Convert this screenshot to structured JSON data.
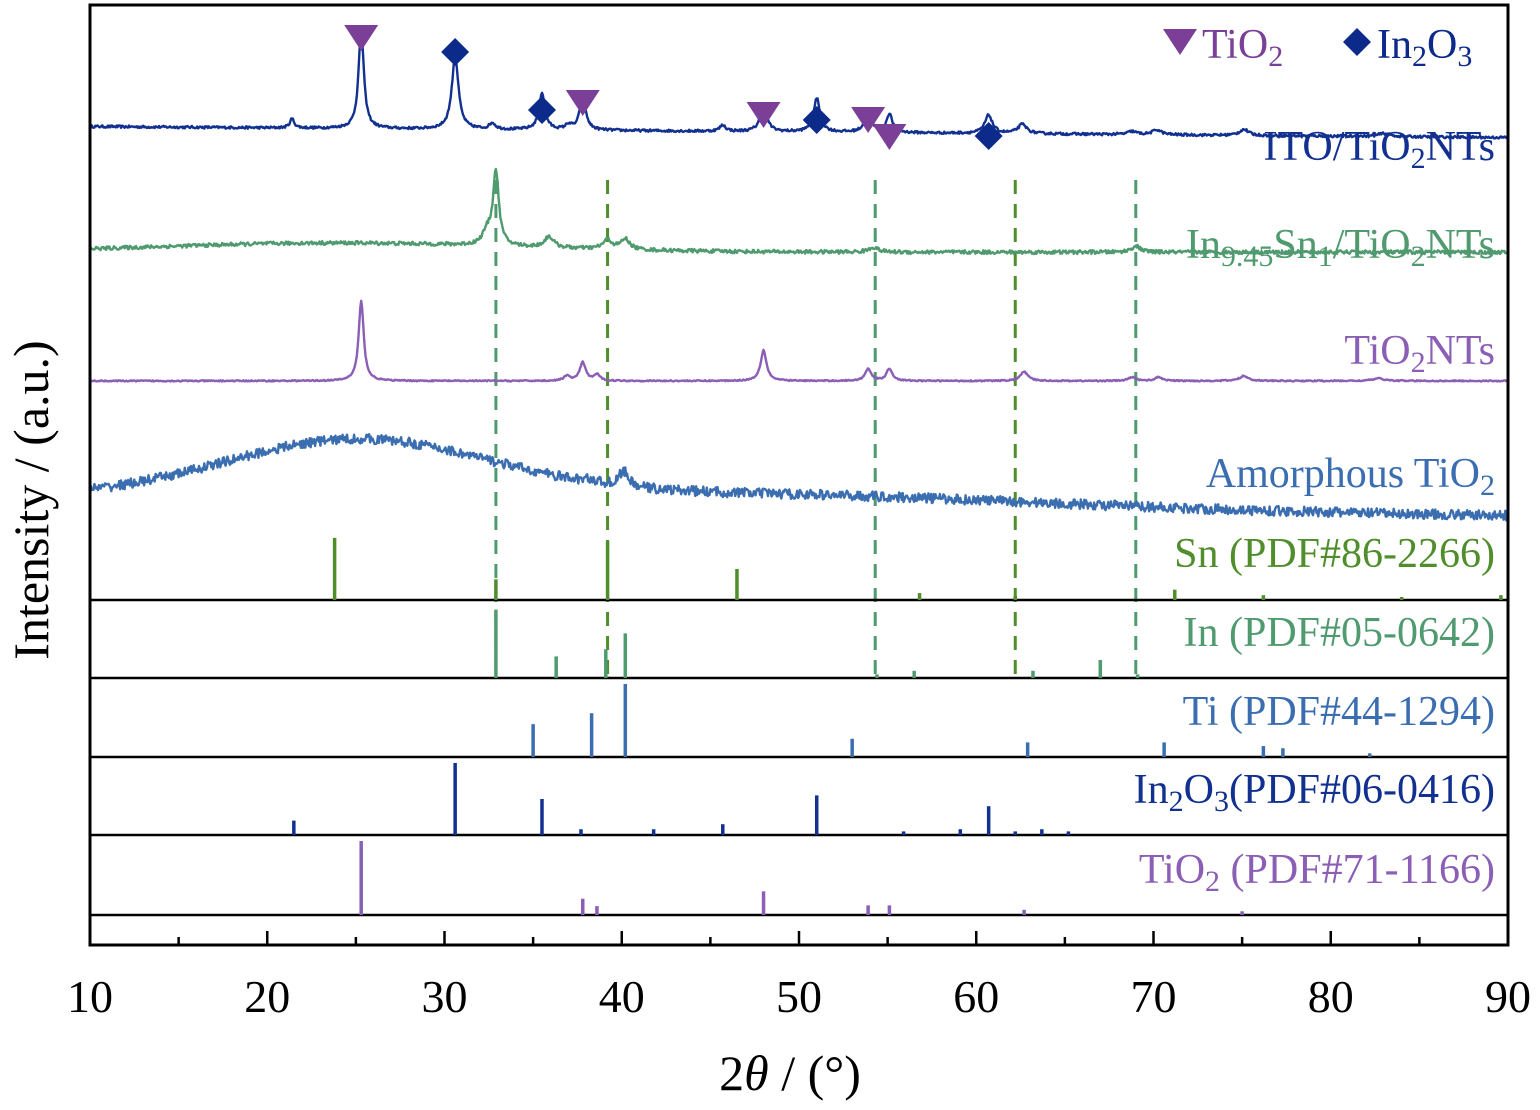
{
  "chart_data": {
    "type": "line",
    "xlabel": "2θ / (°)",
    "xlabel_parts": {
      "var": "2θ",
      "unit": " / (°)"
    },
    "ylabel": "Intensity / (a.u.)",
    "xlim": [
      10,
      90
    ],
    "x_ticks": [
      10,
      20,
      30,
      40,
      50,
      60,
      70,
      80,
      90
    ],
    "grid": false,
    "legend_position": "top-right",
    "legend": [
      {
        "symbol": "triangle-down",
        "color": "#7b3f98",
        "label": "TiO2",
        "parts": [
          [
            "TiO",
            ""
          ],
          [
            "2",
            "sub"
          ]
        ]
      },
      {
        "symbol": "diamond",
        "color": "#0b2a8a",
        "label": "In2O3",
        "parts": [
          [
            "In",
            ""
          ],
          [
            "2",
            "sub"
          ],
          [
            "O",
            ""
          ],
          [
            "3",
            "sub"
          ]
        ]
      }
    ],
    "series": [
      {
        "name": "ITO/TiO2NTs",
        "label_parts": [
          [
            "ITO/TiO",
            ""
          ],
          [
            "2",
            "sub"
          ],
          [
            "NTs",
            ""
          ]
        ],
        "color": "#11308f",
        "baseline": 6.1,
        "drift": -0.18,
        "noise": 0.02,
        "peaks": [
          [
            21.4,
            0.15,
            0.15
          ],
          [
            25.3,
            1.6,
            0.18
          ],
          [
            30.6,
            1.2,
            0.22
          ],
          [
            32.7,
            0.1,
            0.2
          ],
          [
            35.5,
            0.6,
            0.2
          ],
          [
            37.0,
            0.08,
            0.2
          ],
          [
            37.8,
            0.55,
            0.2
          ],
          [
            45.7,
            0.1,
            0.2
          ],
          [
            48.0,
            0.45,
            0.22
          ],
          [
            51.0,
            0.55,
            0.22
          ],
          [
            53.9,
            0.35,
            0.22
          ],
          [
            55.1,
            0.3,
            0.2
          ],
          [
            60.7,
            0.3,
            0.25
          ],
          [
            62.6,
            0.15,
            0.3
          ],
          [
            68.8,
            0.05,
            0.3
          ],
          [
            70.2,
            0.08,
            0.3
          ],
          [
            75.1,
            0.1,
            0.3
          ],
          [
            83.0,
            0.05,
            0.4
          ]
        ],
        "humps": []
      },
      {
        "name": "In9.45Sn1/TiO2NTs",
        "label_parts": [
          [
            "In",
            ""
          ],
          [
            "9.45",
            "sub"
          ],
          [
            "Sn",
            ""
          ],
          [
            "1",
            "sub"
          ],
          [
            "/TiO",
            ""
          ],
          [
            "2",
            "sub"
          ],
          [
            "NTs",
            ""
          ]
        ],
        "color": "#4f9a6e",
        "baseline": 4.05,
        "drift": 0.0,
        "noise": 0.03,
        "peaks": [
          [
            32.4,
            0.2,
            0.3
          ],
          [
            32.9,
            1.2,
            0.2
          ],
          [
            35.9,
            0.18,
            0.3
          ],
          [
            39.2,
            0.15,
            0.3
          ],
          [
            40.2,
            0.17,
            0.3
          ],
          [
            54.2,
            0.08,
            0.3
          ],
          [
            69.0,
            0.1,
            0.3
          ]
        ],
        "humps": [
          [
            24,
            0.15,
            10
          ]
        ]
      },
      {
        "name": "TiO2NTs",
        "label_parts": [
          [
            "TiO",
            ""
          ],
          [
            "2",
            "sub"
          ],
          [
            "NTs",
            ""
          ]
        ],
        "color": "#8a5fb5",
        "baseline": 1.95,
        "drift": 0.0,
        "noise": 0.01,
        "peaks": [
          [
            25.3,
            1.3,
            0.17
          ],
          [
            36.9,
            0.08,
            0.2
          ],
          [
            37.8,
            0.3,
            0.2
          ],
          [
            38.6,
            0.1,
            0.2
          ],
          [
            48.0,
            0.5,
            0.2
          ],
          [
            53.9,
            0.2,
            0.2
          ],
          [
            55.1,
            0.2,
            0.2
          ],
          [
            62.7,
            0.15,
            0.25
          ],
          [
            68.8,
            0.06,
            0.25
          ],
          [
            70.3,
            0.06,
            0.25
          ],
          [
            75.1,
            0.08,
            0.3
          ],
          [
            82.7,
            0.04,
            0.4
          ]
        ],
        "humps": []
      },
      {
        "name": "Amorphous TiO2",
        "label_parts": [
          [
            "Amorphous TiO",
            ""
          ],
          [
            "2",
            "sub"
          ]
        ],
        "color": "#3b6eb0",
        "baseline": 0.05,
        "drift": -0.3,
        "noise": 0.08,
        "peaks": [
          [
            40.1,
            0.25,
            0.3
          ],
          [
            38.2,
            0.05,
            0.3
          ]
        ],
        "humps": [
          [
            25,
            0.95,
            7.5
          ],
          [
            48,
            0.2,
            15
          ]
        ]
      }
    ],
    "references": [
      {
        "name": "Sn (PDF#86-2266)",
        "color": "#4f8e2b",
        "peaks": [
          [
            23.8,
            0.9
          ],
          [
            32.9,
            0.3
          ],
          [
            39.2,
            0.85
          ],
          [
            46.5,
            0.45
          ],
          [
            56.8,
            0.1
          ],
          [
            62.2,
            0.06
          ],
          [
            71.2,
            0.15
          ],
          [
            76.2,
            0.07
          ],
          [
            84.0,
            0.03
          ],
          [
            89.6,
            0.07
          ]
        ]
      },
      {
        "name": "In (PDF#05-0642)",
        "color": "#4f9a6e",
        "peaks": [
          [
            32.9,
            0.95
          ],
          [
            36.3,
            0.3
          ],
          [
            39.1,
            0.4
          ],
          [
            40.2,
            0.62
          ],
          [
            54.4,
            0.05
          ],
          [
            56.5,
            0.1
          ],
          [
            63.2,
            0.1
          ],
          [
            67.0,
            0.25
          ],
          [
            69.1,
            0.05
          ]
        ]
      },
      {
        "name": "Ti (PDF#44-1294)",
        "color": "#3b6eb0",
        "peaks": [
          [
            35.0,
            0.45
          ],
          [
            38.3,
            0.6
          ],
          [
            40.2,
            1.0
          ],
          [
            53.0,
            0.25
          ],
          [
            62.9,
            0.2
          ],
          [
            70.6,
            0.2
          ],
          [
            76.2,
            0.15
          ],
          [
            77.3,
            0.12
          ],
          [
            82.2,
            0.05
          ]
        ]
      },
      {
        "name": "In2O3(PDF#06-0416)",
        "color": "#11308f",
        "peaks": [
          [
            21.5,
            0.2
          ],
          [
            30.6,
            1.0
          ],
          [
            35.5,
            0.5
          ],
          [
            37.7,
            0.08
          ],
          [
            41.8,
            0.08
          ],
          [
            45.7,
            0.15
          ],
          [
            51.0,
            0.55
          ],
          [
            55.9,
            0.05
          ],
          [
            59.1,
            0.08
          ],
          [
            60.7,
            0.4
          ],
          [
            62.2,
            0.05
          ],
          [
            63.7,
            0.08
          ],
          [
            65.2,
            0.05
          ]
        ]
      },
      {
        "name": "TiO2 (PDF#71-1166)",
        "color": "#8a5fb5",
        "peaks": [
          [
            25.3,
            1.0
          ],
          [
            37.8,
            0.22
          ],
          [
            38.6,
            0.12
          ],
          [
            48.0,
            0.32
          ],
          [
            53.9,
            0.13
          ],
          [
            55.1,
            0.13
          ],
          [
            62.7,
            0.07
          ],
          [
            75.0,
            0.05
          ]
        ]
      }
    ],
    "reference_labels": [
      {
        "parts": [
          [
            "Sn (PDF#86-2266)",
            ""
          ]
        ]
      },
      {
        "parts": [
          [
            "In (PDF#05-0642)",
            ""
          ]
        ]
      },
      {
        "parts": [
          [
            "Ti (PDF#44-1294)",
            ""
          ]
        ]
      },
      {
        "parts": [
          [
            "In",
            ""
          ],
          [
            "2",
            "sub"
          ],
          [
            "O",
            ""
          ],
          [
            "3",
            "sub"
          ],
          [
            "(PDF#06-0416)",
            ""
          ]
        ]
      },
      {
        "parts": [
          [
            "TiO",
            ""
          ],
          [
            "2",
            "sub"
          ],
          [
            " (PDF#71-1166)",
            ""
          ]
        ]
      }
    ],
    "guide_lines": [
      {
        "x": 32.9,
        "color": "#4f9a6e"
      },
      {
        "x": 39.2,
        "color": "#4f8e2b"
      },
      {
        "x": 54.3,
        "color": "#4f9a6e"
      },
      {
        "x": 62.2,
        "color": "#4f8e2b"
      },
      {
        "x": 69.0,
        "color": "#4f9a6e"
      }
    ],
    "peak_markers": [
      {
        "x": 25.3,
        "symbol": "triangle-down"
      },
      {
        "x": 30.6,
        "symbol": "diamond"
      },
      {
        "x": 35.5,
        "symbol": "diamond"
      },
      {
        "x": 37.8,
        "symbol": "triangle-down"
      },
      {
        "x": 48.0,
        "symbol": "triangle-down"
      },
      {
        "x": 51.0,
        "symbol": "diamond"
      },
      {
        "x": 53.9,
        "symbol": "triangle-down"
      },
      {
        "x": 55.1,
        "symbol": "triangle-down"
      },
      {
        "x": 60.7,
        "symbol": "diamond"
      }
    ]
  }
}
